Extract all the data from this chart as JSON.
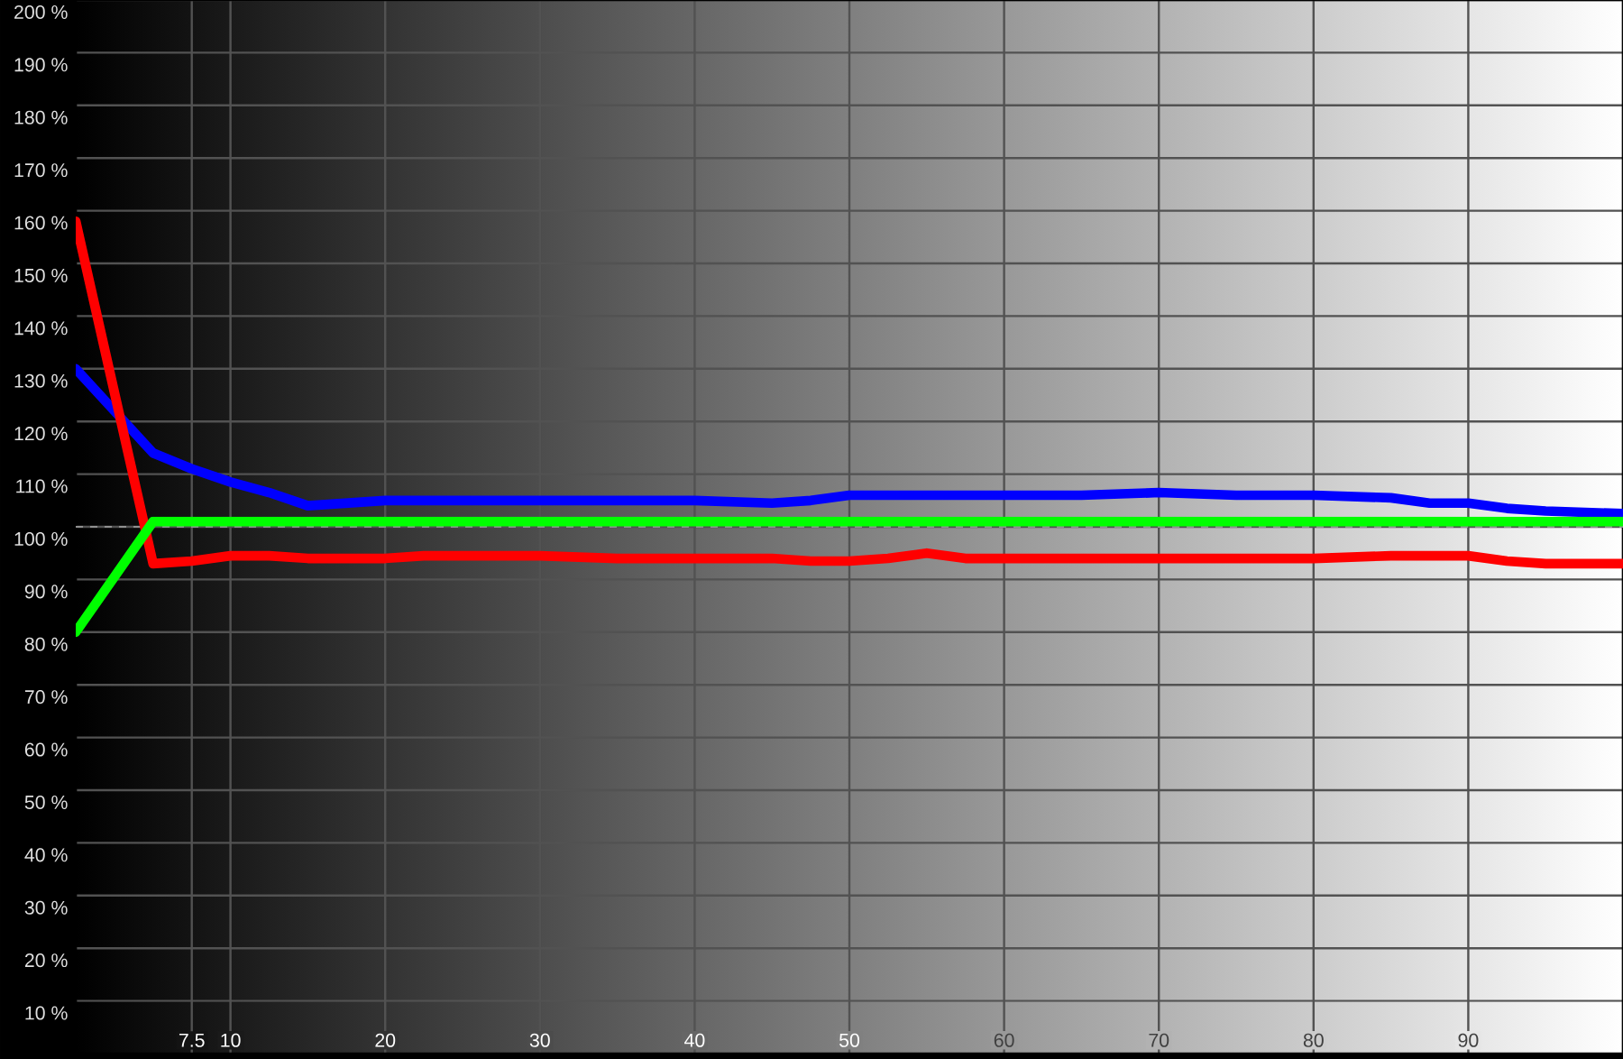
{
  "chart_data": {
    "type": "line",
    "x": [
      0,
      5,
      7.5,
      10,
      12.5,
      15,
      17.5,
      20,
      22.5,
      25,
      30,
      35,
      40,
      45,
      47.5,
      50,
      52.5,
      55,
      57.5,
      60,
      65,
      70,
      75,
      80,
      85,
      87.5,
      90,
      92.5,
      95,
      100
    ],
    "series": [
      {
        "color": "#0000ff",
        "values": [
          130,
          114,
          111,
          108.5,
          106.5,
          104,
          104.5,
          105,
          105,
          105,
          105,
          105,
          105,
          104.5,
          105,
          106,
          106,
          106,
          106,
          106,
          106,
          106.5,
          106,
          106,
          105.5,
          104.5,
          104.5,
          103.5,
          103,
          102.5
        ]
      },
      {
        "color": "#ff0000",
        "values": [
          158,
          93,
          93.5,
          94.5,
          94.5,
          94,
          94,
          94,
          94.5,
          94.5,
          94.5,
          94,
          94,
          94,
          93.5,
          93.5,
          94,
          95,
          94,
          94,
          94,
          94,
          94,
          94,
          94.5,
          94.5,
          94.5,
          93.5,
          93,
          93
        ]
      },
      {
        "color": "#00ff00",
        "values": [
          80,
          101,
          101,
          101,
          101,
          101,
          101,
          101,
          101,
          101,
          101,
          101,
          101,
          101,
          101,
          101,
          101,
          101,
          101,
          101,
          101,
          101,
          101,
          101,
          101,
          101,
          101,
          101,
          101,
          101
        ]
      }
    ],
    "xlim": [
      0,
      100
    ],
    "ylim": [
      0,
      200
    ],
    "xticks": [
      7.5,
      10,
      20,
      30,
      40,
      50,
      60,
      70,
      80,
      90
    ],
    "yticks": [
      {
        "value": 10,
        "label": "10 %"
      },
      {
        "value": 20,
        "label": "20 %"
      },
      {
        "value": 30,
        "label": "30 %"
      },
      {
        "value": 40,
        "label": "40 %"
      },
      {
        "value": 50,
        "label": "50 %"
      },
      {
        "value": 60,
        "label": "60 %"
      },
      {
        "value": 70,
        "label": "70 %"
      },
      {
        "value": 80,
        "label": "80 %"
      },
      {
        "value": 90,
        "label": "90 %"
      },
      {
        "value": 100,
        "label": "100 %"
      },
      {
        "value": 110,
        "label": "110 %"
      },
      {
        "value": 120,
        "label": "120 %"
      },
      {
        "value": 130,
        "label": "130 %"
      },
      {
        "value": 140,
        "label": "140 %"
      },
      {
        "value": 150,
        "label": "150 %"
      },
      {
        "value": 160,
        "label": "160 %"
      },
      {
        "value": 170,
        "label": "170 %"
      },
      {
        "value": 180,
        "label": "180 %"
      },
      {
        "value": 190,
        "label": "190 %"
      },
      {
        "value": 200,
        "label": "200 %"
      }
    ],
    "grid": true,
    "ref_lines": [
      {
        "axis": "y",
        "value": 100,
        "line_style": "dashed"
      }
    ]
  }
}
